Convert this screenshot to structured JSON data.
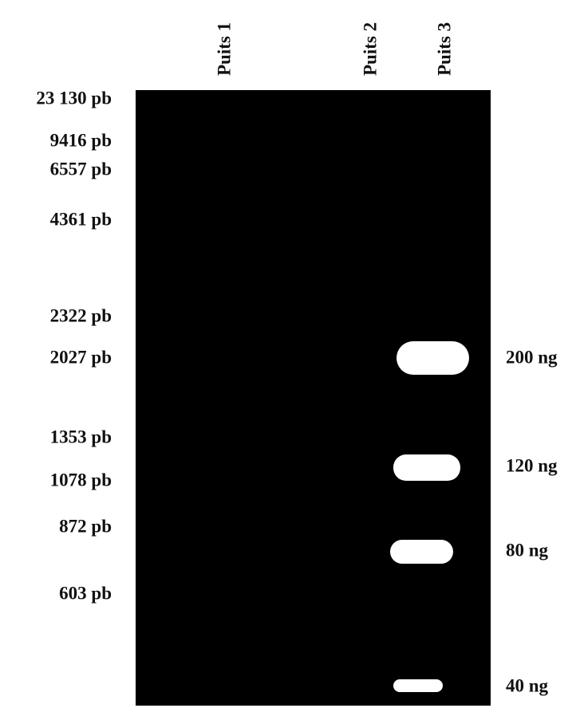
{
  "lanes": [
    {
      "label": "Puits 1"
    },
    {
      "label": "Puits 2"
    },
    {
      "label": "Puits 3"
    }
  ],
  "markers": [
    {
      "label": "23 130 pb"
    },
    {
      "label": "9416 pb"
    },
    {
      "label": "6557 pb"
    },
    {
      "label": "4361 pb"
    },
    {
      "label": "2322 pb"
    },
    {
      "label": "2027 pb"
    },
    {
      "label": "1353 pb"
    },
    {
      "label": "1078 pb"
    },
    {
      "label": "872 pb"
    },
    {
      "label": "603 pb"
    }
  ],
  "bands": [
    {
      "label": "200 ng"
    },
    {
      "label": "120 ng"
    },
    {
      "label": "80 ng"
    },
    {
      "label": "40 ng"
    }
  ]
}
